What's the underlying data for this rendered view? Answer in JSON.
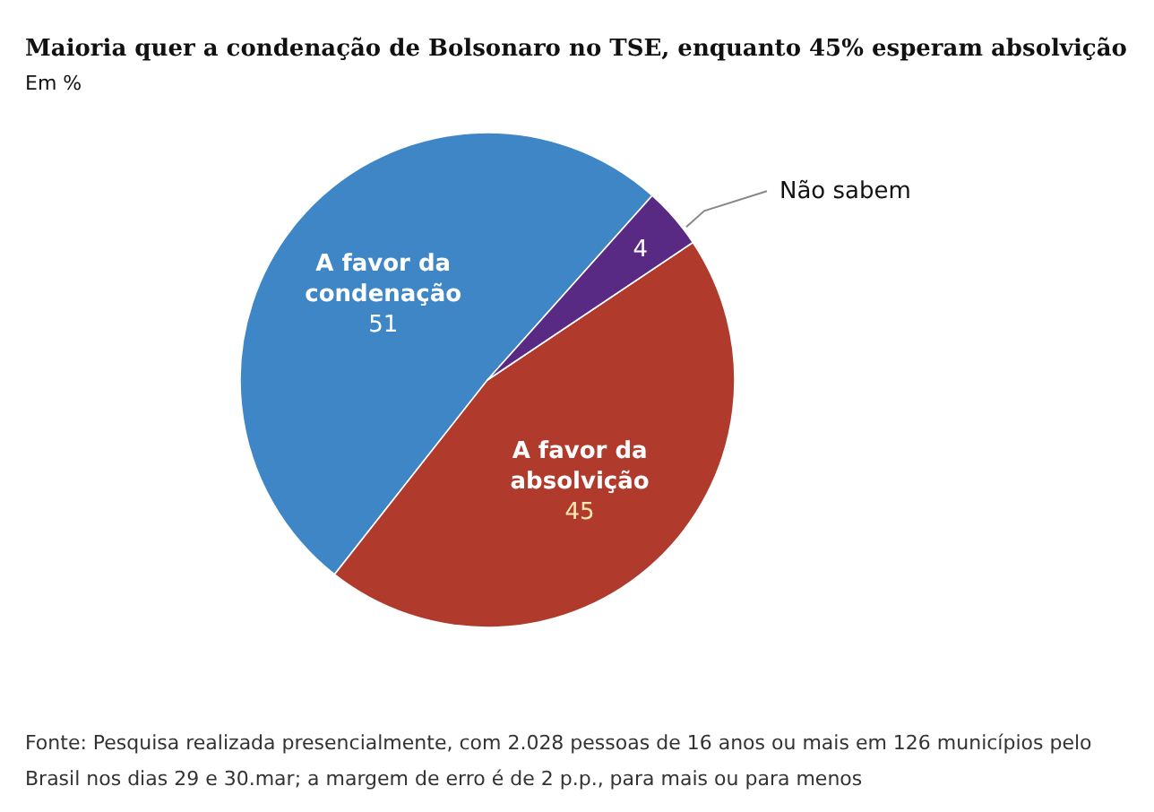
{
  "chart_data": {
    "type": "pie",
    "title": "Maioria quer a condenação de Bolsonaro no TSE, enquanto 45% esperam absolvição",
    "subtitle": "Em %",
    "categories": [
      "A favor da condenação",
      "A favor da absolvição",
      "Não sabem"
    ],
    "values": [
      51,
      45,
      4
    ],
    "colors": [
      "#3f86c7",
      "#b03a2b",
      "#582a84"
    ],
    "data_labels": true,
    "annotations": [
      "Fonte: Pesquisa realizada presencialmente, com 2.028 pessoas de 16 anos ou mais em 126 municípios pelo Brasil nos dias 29 e 30.mar; a margem de erro é de 2 p.p., para mais ou para menos"
    ]
  }
}
